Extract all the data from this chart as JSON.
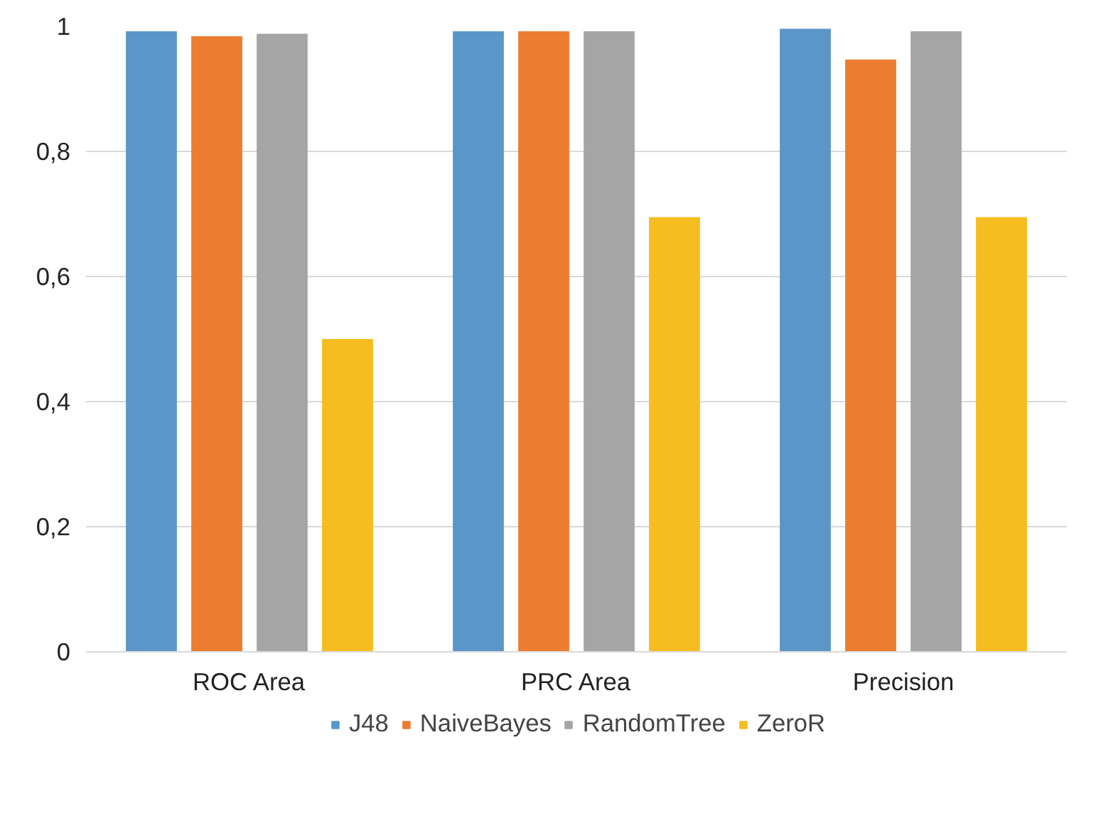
{
  "chart_data": {
    "type": "bar",
    "categories": [
      "ROC Area",
      "PRC Area",
      "Precision"
    ],
    "series": [
      {
        "name": "J48",
        "color": "#5b96c9",
        "values": [
          0.992,
          0.992,
          0.996
        ]
      },
      {
        "name": "NaiveBayes",
        "color": "#ec7c30",
        "values": [
          0.984,
          0.992,
          0.947
        ]
      },
      {
        "name": "RandomTree",
        "color": "#a5a5a5",
        "values": [
          0.988,
          0.992,
          0.992
        ]
      },
      {
        "name": "ZeroR",
        "color": "#f5bd1f",
        "values": [
          0.5,
          0.695,
          0.695
        ]
      }
    ],
    "ylim": [
      0,
      1
    ],
    "yticks": [
      0,
      {
        "value": 0.2,
        "label": "0,2"
      },
      {
        "value": 0.4,
        "label": "0,4"
      },
      {
        "value": 0.6,
        "label": "0,6"
      },
      {
        "value": 0.8,
        "label": "0,8"
      },
      1
    ],
    "grid": "y",
    "legend": "bottom"
  }
}
